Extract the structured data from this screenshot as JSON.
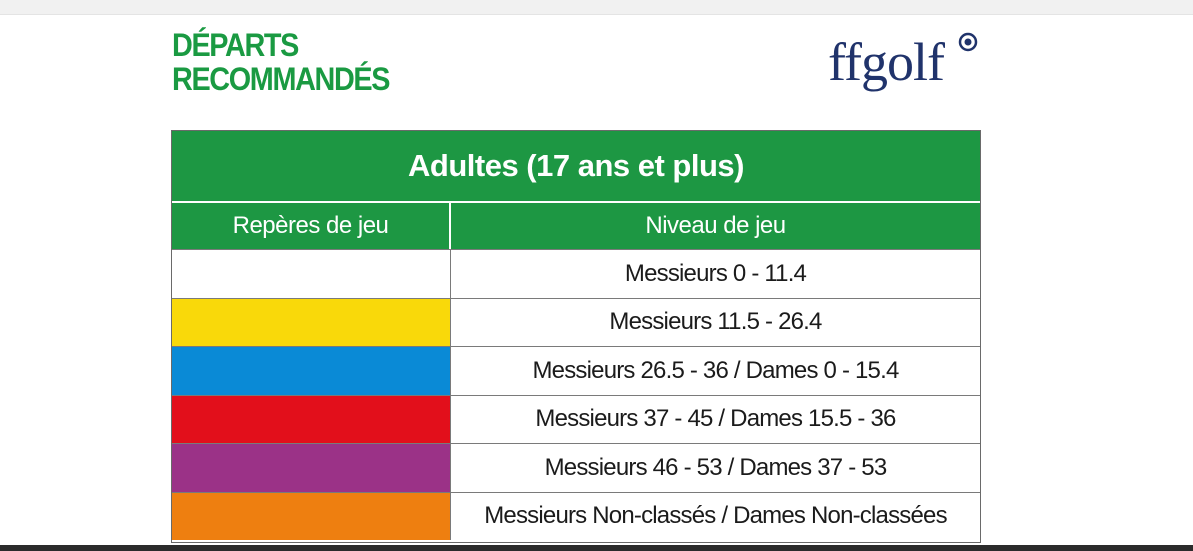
{
  "heading": {
    "line1": "DÉPARTS",
    "line2": "RECOMMANDÉS"
  },
  "logo": {
    "text": "ffgolf"
  },
  "table": {
    "title": "Adultes (17 ans et plus)",
    "col_reperes": "Repères de jeu",
    "col_niveau": "Niveau de jeu",
    "rows": [
      {
        "color": "#ffffff",
        "level": "Messieurs 0 - 11.4"
      },
      {
        "color": "#f9d90a",
        "level": "Messieurs 11.5 - 26.4"
      },
      {
        "color": "#0a8ad6",
        "level": "Messieurs 26.5 - 36 / Dames 0 - 15.4"
      },
      {
        "color": "#e20f1b",
        "level": "Messieurs 37 - 45 / Dames 15.5 - 36"
      },
      {
        "color": "#9b3287",
        "level": "Messieurs 46 - 53 / Dames 37 - 53"
      },
      {
        "color": "#ee7f10",
        "level": "Messieurs Non-classés / Dames Non-classées"
      }
    ]
  },
  "colors": {
    "brand_green": "#1d9743",
    "title_green": "#1a9a42",
    "logo_navy": "#20336b"
  }
}
